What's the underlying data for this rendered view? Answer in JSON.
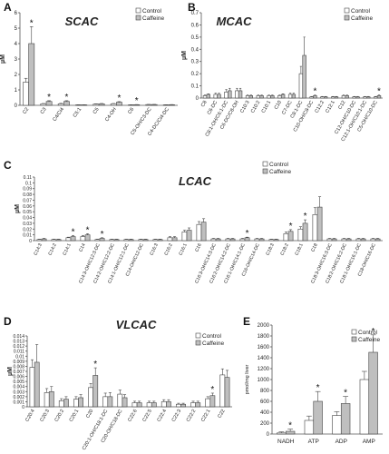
{
  "colors": {
    "control": "#ffffff",
    "caffeine": "#bfbfbf",
    "outline": "#444444"
  },
  "chart_data": [
    {
      "id": "A",
      "letter": "A",
      "title": "SCAC",
      "ylabel": "µM",
      "type": "bar",
      "legend": [
        "Control",
        "Caffeine"
      ],
      "yticks": [
        "0",
        "1",
        "2",
        "3",
        "4",
        "5",
        "6"
      ],
      "ylim": [
        0,
        6
      ],
      "categories": [
        "C2",
        "C3",
        "C4/Ci4",
        "C5:1",
        "C5",
        "C4-OH",
        "C6",
        "C5-OH/C3-DC",
        "C4-DC/Ci4-DC"
      ],
      "series": [
        {
          "name": "Control",
          "values": [
            1.5,
            0.1,
            0.1,
            0.03,
            0.08,
            0.1,
            0.03,
            0.05,
            0.03
          ],
          "errors": [
            0.25,
            0.02,
            0.03,
            0.01,
            0.02,
            0.02,
            0.01,
            0.01,
            0.01
          ]
        },
        {
          "name": "Caffeine",
          "values": [
            4.0,
            0.25,
            0.25,
            0.03,
            0.1,
            0.2,
            0.04,
            0.05,
            0.04
          ],
          "errors": [
            1.1,
            0.05,
            0.05,
            0.01,
            0.02,
            0.04,
            0.01,
            0.01,
            0.01
          ]
        }
      ],
      "significant": [
        0,
        1,
        2,
        5,
        6
      ]
    },
    {
      "id": "B",
      "letter": "B",
      "title": "MCAC",
      "ylabel": "µM",
      "type": "bar",
      "legend": [
        "Control",
        "Caffeine"
      ],
      "yticks": [
        "0",
        "0.1",
        "0.2",
        "0.3",
        "0.4",
        "0.5",
        "0.6",
        "0.7"
      ],
      "ylim": [
        0,
        0.7
      ],
      "categories": [
        "C8",
        "C6-DC",
        "C8:1-OH/C6:1-DC",
        "C6-DC/C8-OH",
        "C10:3",
        "C10:2",
        "C10:1",
        "C10",
        "C7-DC",
        "C8:1-DC",
        "C10-OH/C8-DC",
        "C12:2",
        "C12:1",
        "C12",
        "C12-OH/C10-DC",
        "C12:1-OH/C10:1-DC",
        "C5-OH/C10-DC"
      ],
      "series": [
        {
          "name": "Control",
          "values": [
            0.02,
            0.03,
            0.05,
            0.06,
            0.02,
            0.02,
            0.02,
            0.02,
            0.03,
            0.2,
            0.01,
            0.01,
            0.01,
            0.02,
            0.01,
            0.01,
            0.01
          ],
          "errors": [
            0.005,
            0.01,
            0.02,
            0.02,
            0.005,
            0.005,
            0.005,
            0.005,
            0.01,
            0.06,
            0.003,
            0.003,
            0.003,
            0.005,
            0.003,
            0.003,
            0.003
          ]
        },
        {
          "name": "Caffeine",
          "values": [
            0.03,
            0.03,
            0.06,
            0.06,
            0.02,
            0.02,
            0.02,
            0.03,
            0.03,
            0.35,
            0.02,
            0.01,
            0.01,
            0.02,
            0.01,
            0.01,
            0.02
          ],
          "errors": [
            0.005,
            0.01,
            0.02,
            0.02,
            0.005,
            0.005,
            0.005,
            0.005,
            0.01,
            0.15,
            0.005,
            0.003,
            0.003,
            0.005,
            0.003,
            0.003,
            0.005
          ]
        }
      ],
      "significant": [
        10,
        16
      ]
    },
    {
      "id": "C",
      "letter": "C",
      "title": "LCAC",
      "ylabel": "µM",
      "type": "bar",
      "legend": [
        "Control",
        "Caffeine"
      ],
      "yticks": [
        "0",
        "0.01",
        "0.02",
        "0.03",
        "0.04",
        "0.05",
        "0.06",
        "0.07",
        "0.08",
        "0.09",
        "0.1",
        "0.11"
      ],
      "ylim": [
        0,
        0.11
      ],
      "categories": [
        "C14:3",
        "C14:2",
        "C14:1",
        "C14",
        "C14:3-OH/C12:3-DC",
        "C14:2-OH/C12:2-DC",
        "C14:1-OH/C12:1-DC",
        "C14-OH/C12-DC",
        "C16:3",
        "C16:2",
        "C16:1",
        "C16",
        "C16:3-OH/C14:3-DC",
        "C16:2-OH/C14:2-DC",
        "C16:1-OH/C14:1-DC",
        "C16-OH/C14-DC",
        "C18:3",
        "C18:2",
        "C18:1",
        "C18",
        "C18:3-OH/C16:3-DC",
        "C18:2-OH/C16:2-DC",
        "C18:1-OH/C16:1-DC",
        "C18-OH/C16-DC"
      ],
      "series": [
        {
          "name": "Control",
          "values": [
            0.002,
            0.002,
            0.005,
            0.007,
            0.002,
            0.002,
            0.002,
            0.002,
            0.002,
            0.005,
            0.015,
            0.028,
            0.003,
            0.003,
            0.003,
            0.003,
            0.002,
            0.012,
            0.02,
            0.045,
            0.003,
            0.003,
            0.003,
            0.003
          ],
          "errors": [
            0.0005,
            0.0005,
            0.001,
            0.002,
            0.0005,
            0.0005,
            0.0005,
            0.0005,
            0.0005,
            0.002,
            0.003,
            0.005,
            0.001,
            0.001,
            0.001,
            0.001,
            0.0005,
            0.003,
            0.004,
            0.012,
            0.001,
            0.001,
            0.001,
            0.001
          ]
        },
        {
          "name": "Caffeine",
          "values": [
            0.003,
            0.002,
            0.007,
            0.01,
            0.004,
            0.002,
            0.002,
            0.002,
            0.002,
            0.005,
            0.018,
            0.032,
            0.003,
            0.003,
            0.005,
            0.003,
            0.002,
            0.016,
            0.03,
            0.058,
            0.003,
            0.003,
            0.003,
            0.003
          ],
          "errors": [
            0.001,
            0.0005,
            0.002,
            0.002,
            0.001,
            0.0005,
            0.0005,
            0.0005,
            0.0005,
            0.002,
            0.004,
            0.006,
            0.001,
            0.001,
            0.001,
            0.001,
            0.0005,
            0.003,
            0.006,
            0.018,
            0.001,
            0.001,
            0.001,
            0.001
          ]
        }
      ],
      "significant": [
        2,
        3,
        4,
        14,
        17,
        18
      ]
    },
    {
      "id": "D",
      "letter": "D",
      "title": "VLCAC",
      "ylabel": "µM",
      "type": "bar",
      "legend": [
        "Control",
        "Caffeine"
      ],
      "yticks": [
        "0",
        "0.001",
        "0.002",
        "0.003",
        "0.004",
        "0.005",
        "0.006",
        "0.007",
        "0.008",
        "0.009",
        "0.01",
        "0.011",
        "0.012",
        "0.013",
        "0.014"
      ],
      "ylim": [
        0,
        0.014
      ],
      "categories": [
        "C20:4",
        "C20:3",
        "C20:2",
        "C20:1",
        "C20",
        "C20:1-OH/C18:1-DC",
        "C20-OH/C18-DC",
        "C22:6",
        "C22:5",
        "C22:4",
        "C22:3",
        "C22:2",
        "C22:1",
        "C22"
      ],
      "series": [
        {
          "name": "Control",
          "values": [
            0.0078,
            0.0028,
            0.0012,
            0.0015,
            0.0038,
            0.002,
            0.0025,
            0.0008,
            0.0008,
            0.001,
            0.0005,
            0.0008,
            0.0016,
            0.0063
          ],
          "errors": [
            0.0015,
            0.0008,
            0.0004,
            0.0005,
            0.0008,
            0.0007,
            0.0008,
            0.0003,
            0.0003,
            0.0004,
            0.0002,
            0.0003,
            0.0004,
            0.0012
          ]
        },
        {
          "name": "Caffeine",
          "values": [
            0.0088,
            0.003,
            0.0015,
            0.0018,
            0.0062,
            0.002,
            0.0018,
            0.0008,
            0.0008,
            0.001,
            0.0005,
            0.0008,
            0.0022,
            0.0058
          ],
          "errors": [
            0.0035,
            0.001,
            0.0005,
            0.0006,
            0.0015,
            0.0008,
            0.0006,
            0.0003,
            0.0003,
            0.0004,
            0.0002,
            0.0003,
            0.0005,
            0.0014
          ]
        }
      ],
      "significant": [
        4,
        12
      ]
    },
    {
      "id": "E",
      "letter": "E",
      "title": "",
      "ylabel": "pmol/mg liver",
      "type": "bar",
      "legend": [
        "Control",
        "Caffeine"
      ],
      "yticks": [
        "0",
        "200",
        "400",
        "600",
        "800",
        "1000",
        "1200",
        "1400",
        "1600",
        "1800",
        "2000"
      ],
      "ylim": [
        0,
        2000
      ],
      "categories": [
        "NADH",
        "ATP",
        "ADP",
        "AMP"
      ],
      "series": [
        {
          "name": "Control",
          "values": [
            20,
            250,
            340,
            1000
          ],
          "errors": [
            20,
            80,
            70,
            150
          ]
        },
        {
          "name": "Caffeine",
          "values": [
            50,
            600,
            560,
            1500
          ],
          "errors": [
            40,
            180,
            130,
            320
          ]
        }
      ],
      "significant": [
        0,
        1,
        2,
        3
      ]
    }
  ]
}
